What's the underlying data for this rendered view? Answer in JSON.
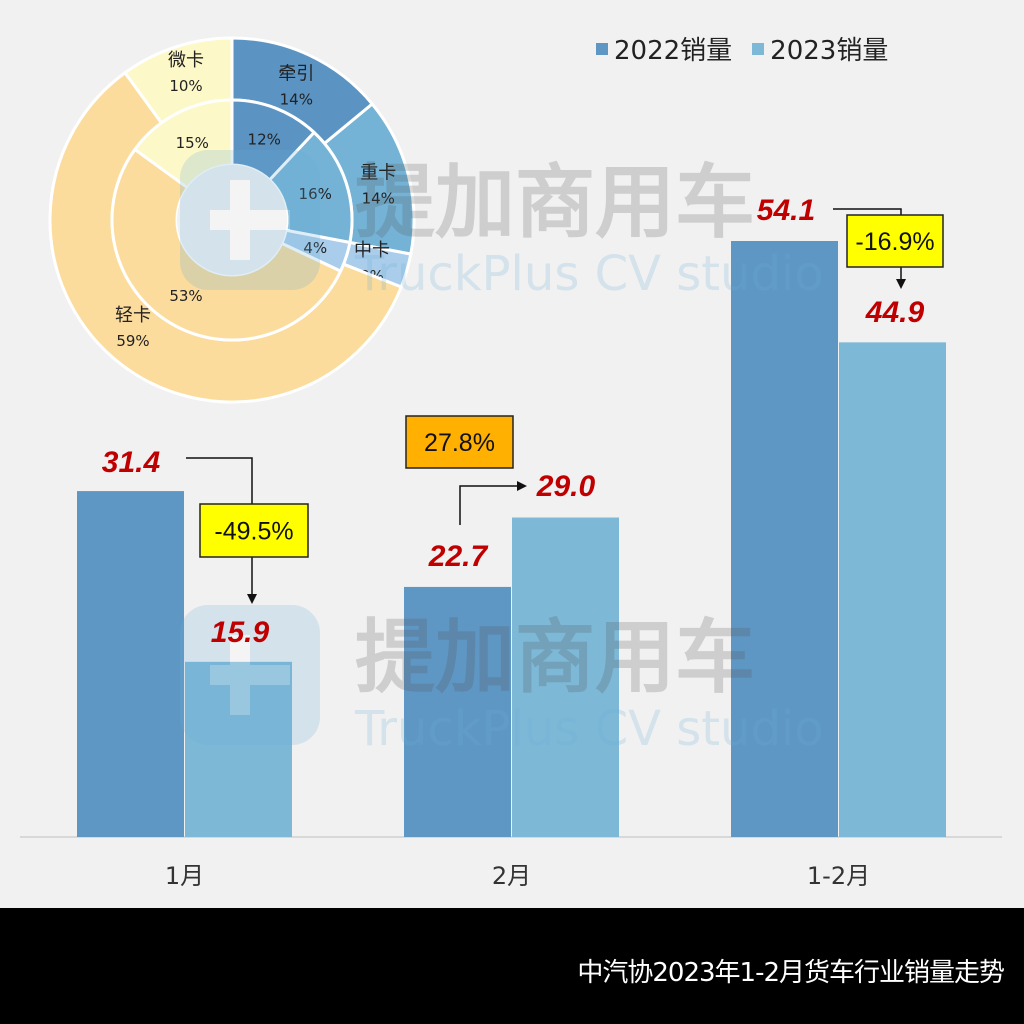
{
  "footer": {
    "title": "中汽协2023年1-2月货车行业销量走势"
  },
  "colors": {
    "s2022": "#5f97c4",
    "s2023": "#7db8d6",
    "value_label": "#c00000",
    "pct_box_down": "#ffff00",
    "pct_box_up": "#ffb000",
    "background": "#f1f1f1",
    "footer_bg": "#000000"
  },
  "legend": [
    {
      "label": "2022销量",
      "color": "#5f97c4"
    },
    {
      "label": "2023销量",
      "color": "#7db8d6"
    }
  ],
  "watermark": {
    "cn": "提加商用车",
    "en": "TruckPlus CV studio"
  },
  "chart_data": [
    {
      "type": "bar",
      "title": "中汽协2023年1-2月货车行业销量走势",
      "categories": [
        "1月",
        "2月",
        "1-2月"
      ],
      "series": [
        {
          "name": "2022销量",
          "values": [
            31.4,
            22.7,
            54.1
          ],
          "color": "#5f97c4"
        },
        {
          "name": "2023销量",
          "values": [
            15.9,
            29.0,
            44.9
          ],
          "color": "#7db8d6"
        }
      ],
      "value_labels": [
        [
          "31.4",
          "22.7",
          "54.1"
        ],
        [
          "15.9",
          "29.0",
          "44.9"
        ]
      ],
      "annotations": [
        {
          "category": "1月",
          "text": "-49.5%",
          "direction": "down",
          "box_color": "#ffff00"
        },
        {
          "category": "2月",
          "text": "27.8%",
          "direction": "up",
          "box_color": "#ffb000"
        },
        {
          "category": "1-2月",
          "text": "-16.9%",
          "direction": "down",
          "box_color": "#ffff00"
        }
      ],
      "xlabel": "",
      "ylabel": "",
      "grid": false,
      "legend_position": "top-right",
      "ylim": [
        0,
        54.1
      ]
    },
    {
      "type": "pie",
      "subtype": "double-donut",
      "categories": [
        "牵引",
        "重卡",
        "中卡",
        "轻卡",
        "微卡"
      ],
      "outer": {
        "values": [
          14,
          14,
          3,
          59,
          10
        ],
        "labels": [
          "14%",
          "14%",
          "3%",
          "59%",
          "10%"
        ]
      },
      "inner": {
        "values": [
          12,
          16,
          4,
          53,
          15
        ],
        "labels": [
          "12%",
          "16%",
          "4%",
          "53%",
          "15%"
        ]
      },
      "colors": [
        "#5b93c2",
        "#74b2d6",
        "#a9cdeb",
        "#fcdc9c",
        "#fdf8c8"
      ]
    }
  ]
}
